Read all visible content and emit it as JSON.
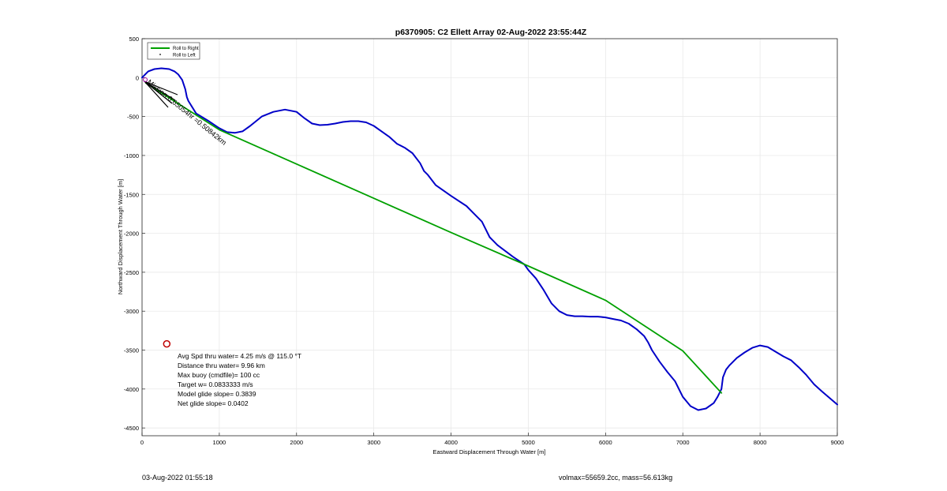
{
  "chart_data": {
    "type": "line",
    "title": "p6370905: C2 Ellett Array 02-Aug-2022 23:55:44Z",
    "xlabel": "Eastward Displacement Through Water [m]",
    "ylabel": "Northward Displacement Through Water [m]",
    "xlim": [
      0,
      9000
    ],
    "ylim": [
      -4600,
      500
    ],
    "xticks": [
      0,
      1000,
      2000,
      3000,
      4000,
      5000,
      6000,
      7000,
      8000,
      9000
    ],
    "yticks": [
      500,
      0,
      -500,
      -1000,
      -1500,
      -2000,
      -2500,
      -3000,
      -3500,
      -4000,
      -4500
    ],
    "grid": true,
    "legend": {
      "placement": "top-left",
      "entries": [
        {
          "label": "Roll to Right",
          "color": "#00a000",
          "style": "line"
        },
        {
          "label": "Roll to Left",
          "color": "#000000",
          "style": "dot"
        }
      ]
    },
    "series": [
      {
        "color": "#0000c8",
        "x": [
          0,
          80,
          160,
          250,
          350,
          420,
          470,
          520,
          560,
          580,
          600,
          700,
          850,
          1000,
          1100,
          1200,
          1300,
          1400,
          1550,
          1700,
          1850,
          2000,
          2100,
          2200,
          2300,
          2400,
          2500,
          2600,
          2700,
          2800,
          2900,
          3000,
          3100,
          3200,
          3300,
          3400,
          3500,
          3600,
          3650,
          3700,
          3800,
          4000,
          4200,
          4300,
          4400,
          4500,
          4550,
          4600,
          4800,
          4950,
          5000,
          5100,
          5200,
          5300,
          5400,
          5500,
          5600,
          5700,
          5800,
          5900,
          6000,
          6100,
          6200,
          6300,
          6400,
          6500,
          6550,
          6600,
          6700,
          6800,
          6900,
          7000,
          7100,
          7200,
          7300,
          7400,
          7450,
          7500,
          7520,
          7560,
          7600,
          7700,
          7800,
          7900,
          8000,
          8100,
          8200,
          8300,
          8400,
          8500,
          8600,
          8700,
          8800,
          9000
        ],
        "y": [
          0,
          80,
          110,
          120,
          110,
          80,
          40,
          -30,
          -150,
          -250,
          -300,
          -460,
          -550,
          -650,
          -700,
          -710,
          -690,
          -620,
          -500,
          -440,
          -410,
          -440,
          -520,
          -590,
          -610,
          -605,
          -590,
          -570,
          -560,
          -560,
          -575,
          -620,
          -690,
          -760,
          -850,
          -900,
          -970,
          -1100,
          -1200,
          -1250,
          -1380,
          -1520,
          -1650,
          -1750,
          -1850,
          -2050,
          -2100,
          -2150,
          -2300,
          -2400,
          -2470,
          -2580,
          -2730,
          -2900,
          -3000,
          -3050,
          -3065,
          -3065,
          -3070,
          -3070,
          -3080,
          -3100,
          -3120,
          -3160,
          -3230,
          -3320,
          -3400,
          -3500,
          -3650,
          -3780,
          -3900,
          -4100,
          -4220,
          -4270,
          -4250,
          -4180,
          -4100,
          -4000,
          -3850,
          -3750,
          -3700,
          -3600,
          -3530,
          -3470,
          -3440,
          -3460,
          -3520,
          -3580,
          -3630,
          -3720,
          -3820,
          -3940,
          -4030,
          -4200
        ]
      },
      {
        "color": "#00a000",
        "x": [
          50,
          1000,
          2000,
          3000,
          4000,
          5000,
          6000,
          7000,
          7500
        ],
        "y": [
          -70,
          -670,
          -1110,
          -1550,
          -1990,
          -2420,
          -2860,
          -3510,
          -4050
        ]
      }
    ],
    "annotations": [
      {
        "text": "Mission:0.65054hr =0.50842km",
        "x": 70,
        "y": -100
      }
    ],
    "marker_points": [
      {
        "label": "",
        "x": 320,
        "y": -3420,
        "shape": "circle",
        "color": "#c00000"
      }
    ],
    "stats": [
      "Avg Spd thru water=  4.25 m/s @ 115.0 °T",
      "Distance thru water=  9.96 km",
      "Max buoy (cmdfile)= 100 cc",
      "Target w= 0.0833333 m/s",
      "Model glide slope= 0.3839",
      "Net glide slope= 0.0402"
    ]
  },
  "footer": {
    "left": "03-Aug-2022 01:55:18",
    "right": "volmax=55659.2cc, mass=56.613kg"
  }
}
